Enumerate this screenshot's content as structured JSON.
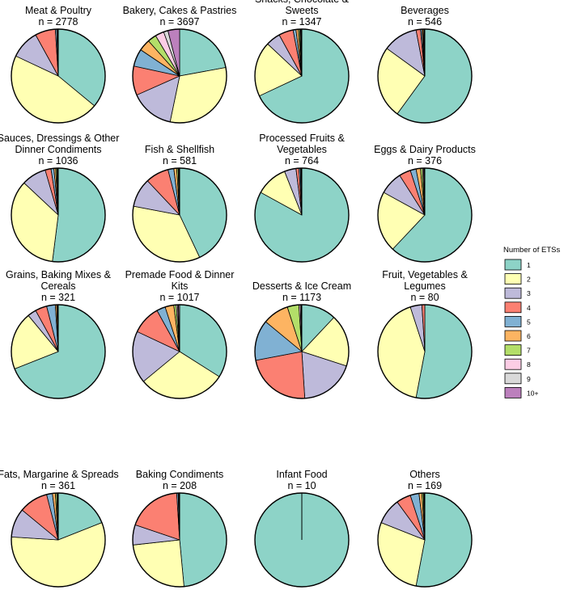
{
  "chart_data": {
    "type": "pie",
    "legend": {
      "title": "Number of ETSs",
      "categories": [
        "1",
        "2",
        "3",
        "4",
        "5",
        "6",
        "7",
        "8",
        "9",
        "10+"
      ],
      "colors": [
        "#8dd3c7",
        "#ffffb3",
        "#bebada",
        "#fb8072",
        "#80b1d3",
        "#fdb462",
        "#b3de69",
        "#fccde5",
        "#d9d9d9",
        "#bc80bd"
      ],
      "placement": "right"
    },
    "panels": [
      {
        "title": [
          "Meat & Poultry",
          "n = 2778"
        ],
        "values": [
          36,
          46,
          10,
          7,
          0.5,
          0.3,
          0.1,
          0.05,
          0.03,
          0.02
        ]
      },
      {
        "title": [
          "Bakery, Cakes & Pastries",
          "n = 3697"
        ],
        "values": [
          22,
          31,
          15,
          10,
          6,
          4,
          3,
          3,
          1.5,
          4
        ]
      },
      {
        "title": [
          "Snacks, Chocolate &",
          "Sweets",
          "n = 1347"
        ],
        "values": [
          68,
          19,
          5,
          5,
          1,
          0.8,
          0.5,
          0.3,
          0.2,
          0.2
        ]
      },
      {
        "title": [
          "Beverages",
          "n = 546"
        ],
        "values": [
          60,
          25,
          12,
          1.5,
          0.5,
          0.4,
          0.3,
          0.1,
          0.1,
          0.1
        ]
      },
      {
        "title": [
          "Sauces, Dressings & Other",
          "Dinner Condiments",
          "n = 1036"
        ],
        "values": [
          52,
          35,
          8.5,
          2,
          1,
          0.6,
          0.4,
          0.2,
          0.2,
          0.1
        ]
      },
      {
        "title": [
          "Fish & Shellfish",
          "n = 581"
        ],
        "values": [
          43,
          35,
          10,
          8,
          2,
          1,
          0.5,
          0.2,
          0.2,
          0.1
        ]
      },
      {
        "title": [
          "Processed Fruits &",
          "Vegetables",
          "n = 764"
        ],
        "values": [
          83,
          11,
          4,
          1,
          0.5,
          0.2,
          0.1,
          0.1,
          0.05,
          0.05
        ]
      },
      {
        "title": [
          "Eggs & Dairy Products",
          "n = 376"
        ],
        "values": [
          62,
          21,
          8,
          4,
          2,
          1.5,
          0.7,
          0.4,
          0.2,
          0.2
        ]
      },
      {
        "title": [
          "Grains, Baking Mixes &",
          "Cereals",
          "n = 321"
        ],
        "values": [
          69,
          20,
          3,
          4,
          3,
          0.5,
          0.2,
          0.1,
          0.1,
          0.1
        ]
      },
      {
        "title": [
          "Premade Food & Dinner",
          "Kits",
          "n = 1017"
        ],
        "values": [
          34,
          30,
          18,
          10,
          3,
          3,
          0.8,
          0.5,
          0.3,
          0.4
        ]
      },
      {
        "title": [
          "Desserts & Ice Cream",
          "n = 1173"
        ],
        "values": [
          12,
          18,
          19,
          23,
          14,
          9,
          4,
          0.5,
          0.3,
          0.2
        ]
      },
      {
        "title": [
          "Fruit, Vegetables &",
          "Legumes",
          "n = 80"
        ],
        "values": [
          53,
          42,
          4,
          1,
          0,
          0,
          0,
          0,
          0,
          0
        ]
      },
      {
        "title": [
          "Fats, Margarine & Spreads",
          "n = 361"
        ],
        "values": [
          19,
          57,
          10,
          10,
          2,
          1,
          0.5,
          0.3,
          0.1,
          0.1
        ]
      },
      {
        "title": [
          "Baking Condiments",
          "n = 208"
        ],
        "values": [
          49,
          25,
          7,
          19,
          0.5,
          0.2,
          0.1,
          0.1,
          0.05,
          0.05
        ]
      },
      {
        "title": [
          "Infant Food",
          "n = 10"
        ],
        "values": [
          100,
          0,
          0,
          0,
          0,
          0,
          0,
          0,
          0,
          0
        ]
      },
      {
        "title": [
          "Others",
          "n = 169"
        ],
        "values": [
          53,
          28,
          9,
          5,
          3,
          1,
          0.5,
          0.2,
          0.2,
          0.1
        ]
      }
    ]
  }
}
